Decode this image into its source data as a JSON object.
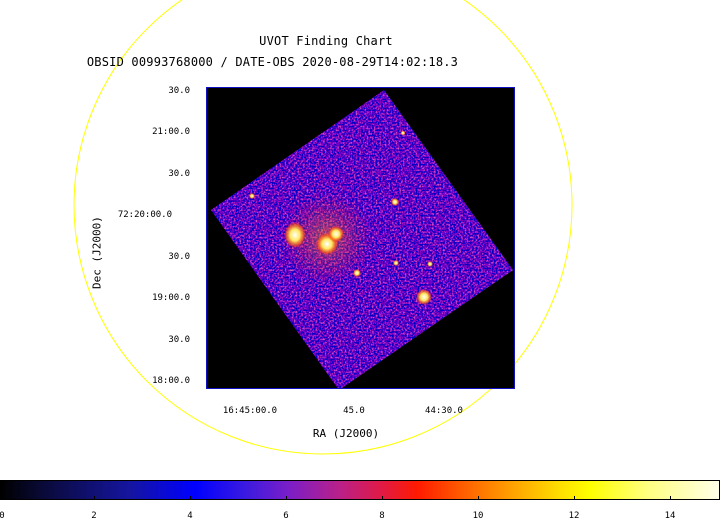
{
  "chart": {
    "title": "UVOT Finding Chart",
    "subtitle": "OBSID 00993768000 / DATE-OBS 2020-08-29T14:02:18.3",
    "dec_axis_label": "Dec (J2000)",
    "ra_axis_label": "RA (J2000)",
    "dec_ticks": [
      "30.0",
      "21:00.0",
      "30.0",
      "72:20:00.0",
      "30.0",
      "19:00.0",
      "30.0",
      "18:00.0"
    ],
    "ra_ticks": [
      "16:45:00.0",
      "45.0",
      "44:30.0"
    ],
    "colorbar_ticks": [
      "0",
      "2",
      "4",
      "6",
      "8",
      "10",
      "12",
      "14"
    ]
  },
  "colors": {
    "circle": "#ffff00",
    "frame": "#1010c0"
  }
}
